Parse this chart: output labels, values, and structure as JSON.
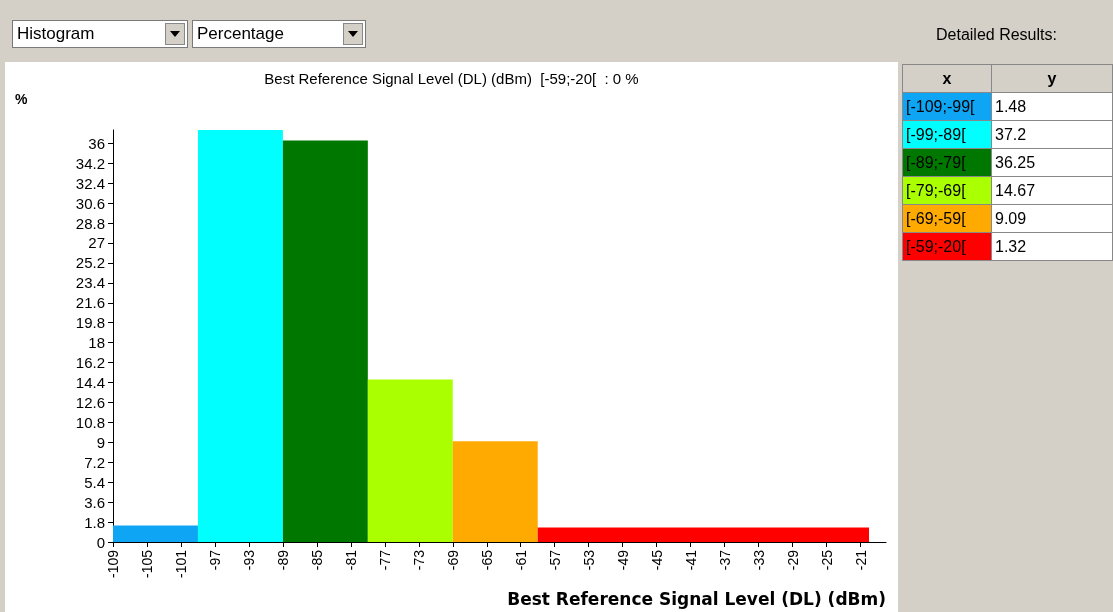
{
  "chart_data": [
    {
      "type": "histogram",
      "title": "Best Reference Signal Level (DL) (dBm)  [-59;-20[  : 0 %",
      "xlabel": "Best Reference Signal Level (DL) (dBm)",
      "ylabel": "%",
      "bins": [
        -109,
        -99,
        -89,
        -79,
        -69,
        -59,
        -20
      ],
      "values": [
        1.48,
        37.2,
        36.25,
        14.67,
        9.09,
        1.32
      ],
      "colors": [
        "#0ea5f5",
        "#00ffff",
        "#007800",
        "#aaff00",
        "#ffaa00",
        "#ff0000"
      ],
      "xlim": [
        -109,
        -18
      ],
      "xticks": [
        -109,
        -105,
        -101,
        -97,
        -93,
        -89,
        -85,
        -81,
        -77,
        -73,
        -69,
        -65,
        -61,
        -57,
        -53,
        -49,
        -45,
        -41,
        -37,
        -33,
        -29,
        -25,
        -21
      ],
      "ylim": [
        0,
        37.2
      ],
      "yticks": [
        0,
        1.8,
        3.6,
        5.4,
        7.2,
        9,
        10.8,
        12.6,
        14.4,
        16.2,
        18,
        19.8,
        21.6,
        23.4,
        25.2,
        27,
        28.8,
        30.6,
        32.4,
        34.2,
        36
      ],
      "annotations": [
        "Histogram",
        "Percentage"
      ]
    },
    {
      "type": "other",
      "title": "Detailed Results:",
      "xlabel": "x",
      "ylabel": "y",
      "categories": [
        "[-109;-99[",
        "[-99;-89[",
        "[-89;-79[",
        "[-79;-69[",
        "[-69;-59[",
        "[-59;-20["
      ],
      "values": [
        1.48,
        37.2,
        36.25,
        14.67,
        9.09,
        1.32
      ],
      "data_labels": true
    }
  ]
}
